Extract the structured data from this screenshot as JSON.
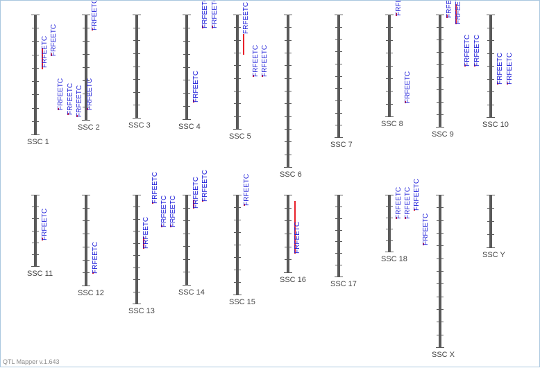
{
  "app": {
    "version_text": "QTL Mapper v.1.643"
  },
  "colors": {
    "chromosome": "#595959",
    "tick": "#595959",
    "qtl_bar": "#e8202a",
    "trait_label": "#1a1ad8",
    "chrom_label": "#444444"
  },
  "trait_name": "FRFEETC",
  "chromosomes": [
    {
      "id": "ssc1",
      "label": "SSC 1",
      "qtls": [
        {
          "trait": "FRFEETC"
        },
        {
          "trait": "FRFEETC"
        },
        {
          "trait": "FRFEETC"
        },
        {
          "trait": "FRFEETC"
        }
      ]
    },
    {
      "id": "ssc2",
      "label": "SSC 2",
      "qtls": [
        {
          "trait": "FRFEETC"
        },
        {
          "trait": "FRFEETC"
        },
        {
          "trait": "FRFEETC"
        }
      ]
    },
    {
      "id": "ssc3",
      "label": "SSC 3",
      "qtls": []
    },
    {
      "id": "ssc4",
      "label": "SSC 4",
      "qtls": [
        {
          "trait": "FRFEETC"
        },
        {
          "trait": "FRFEETC"
        },
        {
          "trait": "FRFEETC"
        }
      ]
    },
    {
      "id": "ssc5",
      "label": "SSC 5",
      "qtls": [
        {
          "trait": "FRFEETC"
        },
        {
          "trait": "FRFEETC"
        },
        {
          "trait": "FRFEETC"
        }
      ]
    },
    {
      "id": "ssc6",
      "label": "SSC 6",
      "qtls": []
    },
    {
      "id": "ssc7",
      "label": "SSC 7",
      "qtls": []
    },
    {
      "id": "ssc8",
      "label": "SSC 8",
      "qtls": [
        {
          "trait": "FRFEETC"
        },
        {
          "trait": "FRFEETC"
        }
      ]
    },
    {
      "id": "ssc9",
      "label": "SSC 9",
      "qtls": [
        {
          "trait": "FRFEETC"
        },
        {
          "trait": "FRFEETC"
        },
        {
          "trait": "FRFEETC"
        },
        {
          "trait": "FRFEETC"
        }
      ]
    },
    {
      "id": "ssc10",
      "label": "SSC 10",
      "qtls": [
        {
          "trait": "FRFEETC"
        },
        {
          "trait": "FRFEETC"
        }
      ]
    },
    {
      "id": "ssc11",
      "label": "SSC 11",
      "qtls": [
        {
          "trait": "FRFEETC"
        }
      ]
    },
    {
      "id": "ssc12",
      "label": "SSC 12",
      "qtls": [
        {
          "trait": "FRFEETC"
        }
      ]
    },
    {
      "id": "ssc13",
      "label": "SSC 13",
      "qtls": [
        {
          "trait": "FRFEETC"
        },
        {
          "trait": "FRFEETC"
        },
        {
          "trait": "FRFEETC"
        },
        {
          "trait": "FRFEETC"
        }
      ]
    },
    {
      "id": "ssc14",
      "label": "SSC 14",
      "qtls": [
        {
          "trait": "FRFEETC"
        },
        {
          "trait": "FRFEETC"
        }
      ]
    },
    {
      "id": "ssc15",
      "label": "SSC 15",
      "qtls": [
        {
          "trait": "FRFEETC"
        }
      ]
    },
    {
      "id": "ssc16",
      "label": "SSC 16",
      "qtls": [
        {
          "trait": "FRFEETC"
        }
      ]
    },
    {
      "id": "ssc17",
      "label": "SSC 17",
      "qtls": []
    },
    {
      "id": "ssc18",
      "label": "SSC 18",
      "qtls": [
        {
          "trait": "FRFEETC"
        },
        {
          "trait": "FRFEETC"
        },
        {
          "trait": "FRFEETC"
        },
        {
          "trait": "FRFEETC"
        }
      ]
    },
    {
      "id": "sscx",
      "label": "SSC X",
      "qtls": []
    },
    {
      "id": "sscy",
      "label": "SSC Y",
      "qtls": []
    }
  ]
}
